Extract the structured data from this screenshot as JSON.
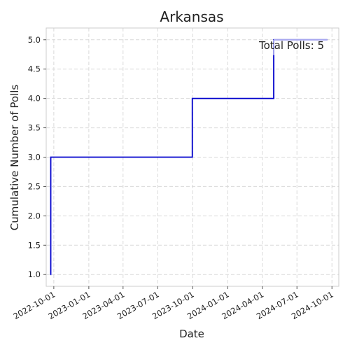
{
  "chart_data": {
    "type": "line",
    "step": "post",
    "title": "Arkansas",
    "xlabel": "Date",
    "ylabel": "Cumulative Number of Polls",
    "x_axis_type": "date",
    "xlim": [
      "2022-09-11",
      "2024-10-19"
    ],
    "ylim": [
      0.8,
      5.2
    ],
    "xticks": [
      "2022-10-01",
      "2023-01-01",
      "2023-04-01",
      "2023-07-01",
      "2023-10-01",
      "2024-01-01",
      "2024-04-01",
      "2024-07-01",
      "2024-10-01"
    ],
    "yticks": [
      1.0,
      1.5,
      2.0,
      2.5,
      3.0,
      3.5,
      4.0,
      4.5,
      5.0
    ],
    "ytick_labels": [
      "1.0",
      "1.5",
      "2.0",
      "2.5",
      "3.0",
      "3.5",
      "4.0",
      "4.5",
      "5.0"
    ],
    "grid": true,
    "series": [
      {
        "color": "#0000cc",
        "points": [
          {
            "x": "2022-09-22",
            "y": 1
          },
          {
            "x": "2022-09-23",
            "y": 3
          },
          {
            "x": "2023-09-30",
            "y": 4
          },
          {
            "x": "2024-05-01",
            "y": 5
          },
          {
            "x": "2024-09-19",
            "y": 5
          }
        ],
        "faded_from": "2024-05-01",
        "faded_color": "#a8a8f0"
      }
    ],
    "annotation": {
      "text": "Total Polls: 5",
      "position": "top-right"
    }
  }
}
